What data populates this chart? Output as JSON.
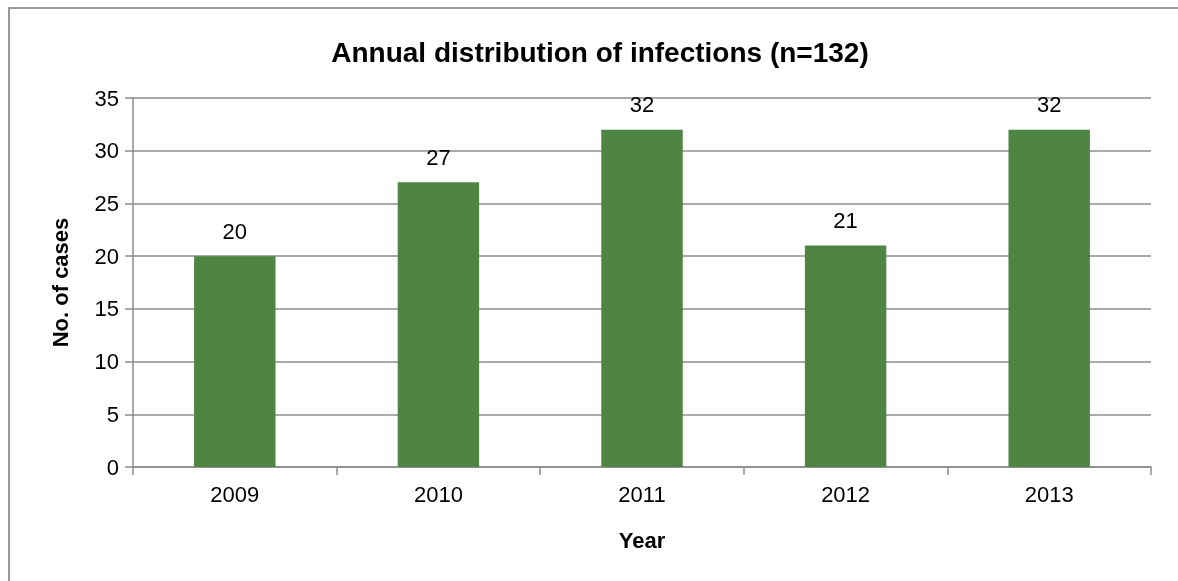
{
  "chart_data": {
    "type": "bar",
    "title": "Annual distribution of infections (n=132)",
    "xlabel": "Year",
    "ylabel": "No. of cases",
    "categories": [
      "2009",
      "2010",
      "2011",
      "2012",
      "2013"
    ],
    "values": [
      20,
      27,
      32,
      21,
      32
    ],
    "color": "#4e8542",
    "ylim": [
      0,
      35
    ],
    "yticks": [
      0,
      5,
      10,
      15,
      20,
      25,
      30,
      35
    ],
    "grid": "y",
    "data_labels": true
  }
}
